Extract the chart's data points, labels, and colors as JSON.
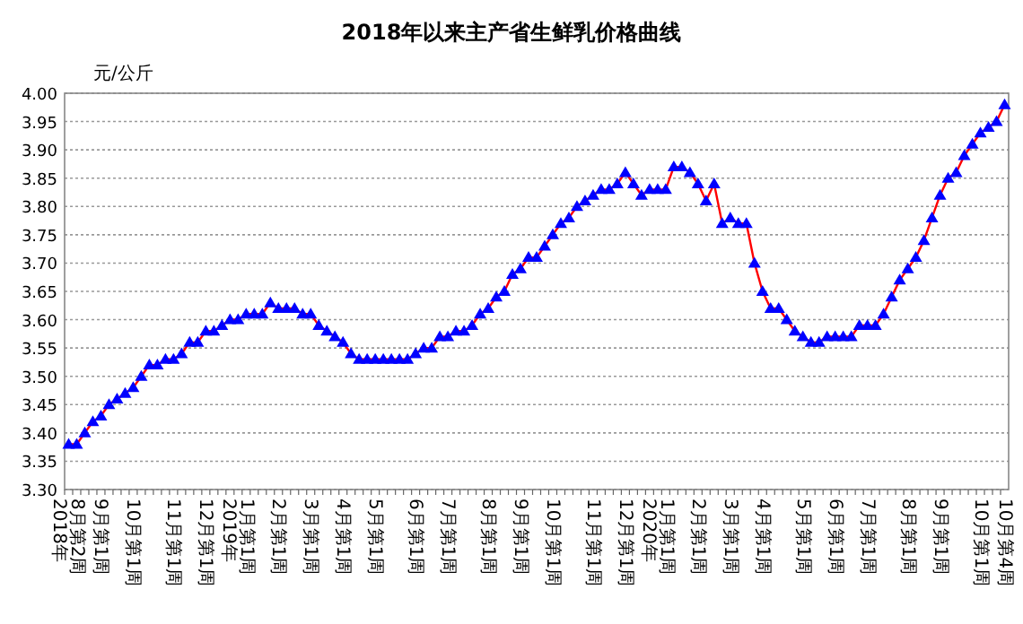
{
  "chart_data": {
    "type": "line",
    "title": "2018年以来主产省生鲜乳价格曲线",
    "ylabel": "元/公斤",
    "categories": [
      "2018年8月第2周",
      null,
      null,
      null,
      "9月第1周",
      null,
      null,
      null,
      "10月第1周",
      null,
      null,
      null,
      null,
      "11月第1周",
      null,
      null,
      null,
      "12月第1周",
      null,
      null,
      null,
      "2019年1月第1周",
      null,
      null,
      null,
      null,
      "2月第1周",
      null,
      null,
      null,
      "3月第1周",
      null,
      null,
      null,
      "4月第1周",
      null,
      null,
      null,
      "5月第1周",
      null,
      null,
      null,
      null,
      "6月第1周",
      null,
      null,
      null,
      "7月第1周",
      null,
      null,
      null,
      null,
      "8月第1周",
      null,
      null,
      null,
      "9月第1周",
      null,
      null,
      null,
      "10月第1周",
      null,
      null,
      null,
      null,
      "11月第1周",
      null,
      null,
      null,
      "12月第1周",
      null,
      null,
      null,
      "2020年1月第1周",
      null,
      null,
      null,
      null,
      "2月第1周",
      null,
      null,
      null,
      "3月第1周",
      null,
      null,
      null,
      "4月第1周",
      null,
      null,
      null,
      null,
      "5月第1周",
      null,
      null,
      null,
      "6月第1周",
      null,
      null,
      null,
      "7月第1周",
      null,
      null,
      null,
      null,
      "8月第1周",
      null,
      null,
      null,
      "9月第1周",
      null,
      null,
      null,
      null,
      "10月第1周",
      null,
      null,
      "10月第4周"
    ],
    "series": [
      {
        "color": "#ff0000",
        "colors": [
          "#0000ff",
          "#0000ff",
          "#0000ff",
          "#0000ff",
          "#0000ff",
          "#0000ff",
          "#0000ff",
          "#0000ff",
          "#0000ff",
          "#0000ff",
          "#0000ff",
          "#0000ff",
          "#0000ff",
          "#0000ff",
          "#0000ff",
          "#0000ff",
          "#0000ff",
          "#0000ff",
          "#0000ff",
          "#0000ff",
          "#0000ff",
          "#0000ff",
          "#0000ff",
          "#0000ff",
          "#0000ff",
          "#0000ff",
          "#0000ff",
          "#0000ff",
          "#0000ff",
          "#0000ff",
          "#0000ff",
          "#0000ff",
          "#0000ff",
          "#0000ff",
          "#0000ff",
          "#0000ff",
          "#0000ff",
          "#0000ff",
          "#0000ff",
          "#0000ff",
          "#0000ff",
          "#0000ff",
          "#0000ff",
          "#0000ff",
          "#0000ff",
          "#0000ff",
          "#0000ff",
          "#0000ff",
          "#0000ff",
          "#0000ff",
          "#0000ff",
          "#0000ff",
          "#0000ff",
          "#0000ff",
          "#0000ff",
          "#0000ff",
          "#0000ff",
          "#0000ff",
          "#0000ff",
          "#0000ff",
          "#0000ff",
          "#0000ff",
          "#0000ff",
          "#0000ff",
          "#0000ff",
          "#0000ff",
          "#0000ff",
          "#0000ff",
          "#0000ff",
          "#0000ff",
          "#0000ff",
          "#0000ff",
          "#0000ff",
          "#0000ff",
          "#0000ff",
          "#0000ff",
          "#0000ff",
          "#0000ff",
          "#0000ff",
          "#0000ff",
          "#0000ff",
          "#0000ff",
          "#0000ff",
          "#0000ff",
          "#0000ff",
          "#0000ff",
          "#0000ff",
          "#0000ff",
          "#0000ff",
          "#0000ff",
          "#0000ff",
          "#0000ff",
          "#0000ff",
          "#0000ff",
          "#0000ff",
          "#0000ff",
          "#0000ff",
          "#0000ff",
          "#0000ff",
          "#0000ff",
          "#0000ff",
          "#0000ff",
          "#0000ff",
          "#0000ff",
          "#0000ff",
          "#0000ff",
          "#0000ff",
          "#0000ff",
          "#0000ff",
          "#0000ff",
          "#0000ff",
          "#0000ff",
          "#0000ff",
          "#0000ff",
          "#0000ff",
          "#0000ff",
          "#0000ff"
        ],
        "values": [
          3.38,
          3.38,
          3.4,
          3.42,
          3.43,
          3.45,
          3.46,
          3.47,
          3.48,
          3.5,
          3.52,
          3.52,
          3.53,
          3.53,
          3.54,
          3.56,
          3.56,
          3.58,
          3.58,
          3.59,
          3.6,
          3.6,
          3.61,
          3.61,
          3.61,
          3.63,
          3.62,
          3.62,
          3.62,
          3.61,
          3.61,
          3.59,
          3.58,
          3.57,
          3.56,
          3.54,
          3.53,
          3.53,
          3.53,
          3.53,
          3.53,
          3.53,
          3.53,
          3.54,
          3.55,
          3.55,
          3.57,
          3.57,
          3.58,
          3.58,
          3.59,
          3.61,
          3.62,
          3.64,
          3.65,
          3.68,
          3.69,
          3.71,
          3.71,
          3.73,
          3.75,
          3.77,
          3.78,
          3.8,
          3.81,
          3.82,
          3.83,
          3.83,
          3.84,
          3.86,
          3.84,
          3.82,
          3.83,
          3.83,
          3.83,
          3.87,
          3.87,
          3.86,
          3.84,
          3.81,
          3.84,
          3.77,
          3.78,
          3.77,
          3.77,
          3.7,
          3.65,
          3.62,
          3.62,
          3.6,
          3.58,
          3.57,
          3.56,
          3.56,
          3.57,
          3.57,
          3.57,
          3.57,
          3.59,
          3.59,
          3.59,
          3.61,
          3.64,
          3.67,
          3.69,
          3.71,
          3.74,
          3.78,
          3.82,
          3.85,
          3.86,
          3.89,
          3.91,
          3.93,
          3.94,
          3.95,
          3.98
        ]
      }
    ],
    "ylim": [
      3.3,
      4.0
    ],
    "yticks": [
      {
        "value": 3.3,
        "label": "3.30"
      },
      {
        "value": 3.35,
        "label": "3.35"
      },
      {
        "value": 3.4,
        "label": "3.40"
      },
      {
        "value": 3.45,
        "label": "3.45"
      },
      {
        "value": 3.5,
        "label": "3.50"
      },
      {
        "value": 3.55,
        "label": "3.55"
      },
      {
        "value": 3.6,
        "label": "3.60"
      },
      {
        "value": 3.65,
        "label": "3.65"
      },
      {
        "value": 3.7,
        "label": "3.70"
      },
      {
        "value": 3.75,
        "label": "3.75"
      },
      {
        "value": 3.8,
        "label": "3.80"
      },
      {
        "value": 3.85,
        "label": "3.85"
      },
      {
        "value": 3.9,
        "label": "3.90"
      },
      {
        "value": 3.95,
        "label": "3.95"
      },
      {
        "value": 4.0,
        "label": "4.00"
      }
    ],
    "grid": "y",
    "marker": "triangle",
    "line_style": "solid"
  }
}
